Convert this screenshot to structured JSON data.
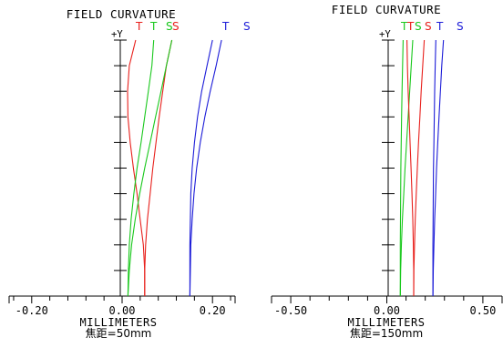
{
  "colors": {
    "red": "#e8201c",
    "green": "#19c81c",
    "blue": "#1c1cd8",
    "axis": "#000000"
  },
  "chart_data": [
    {
      "type": "line",
      "title": "FIELD CURVATURE",
      "y_axis_label": "+Y",
      "xlabel": "MILLIMETERS",
      "subtitle": "焦距=50mm",
      "xlim": [
        -0.25,
        0.25
      ],
      "ylim": [
        0,
        1
      ],
      "x_tick_labels": [
        {
          "value": -0.2,
          "label": "-0.20"
        },
        {
          "value": 0.0,
          "label": "0.00"
        },
        {
          "value": 0.2,
          "label": "0.20"
        }
      ],
      "legend": [
        {
          "label": "T",
          "color": "#e8201c"
        },
        {
          "label": "T",
          "color": "#19c81c"
        },
        {
          "label": "S",
          "color": "#19c81c"
        },
        {
          "label": "S",
          "color": "#e8201c"
        },
        {
          "label": "T",
          "color": "#1c1cd8"
        },
        {
          "label": "S",
          "color": "#1c1cd8"
        }
      ],
      "series": [
        {
          "color": "#e8201c",
          "points": [
            [
              0.05,
              0
            ],
            [
              0.05,
              0.1
            ],
            [
              0.047,
              0.2
            ],
            [
              0.04,
              0.3
            ],
            [
              0.033,
              0.4
            ],
            [
              0.025,
              0.5
            ],
            [
              0.018,
              0.6
            ],
            [
              0.013,
              0.7
            ],
            [
              0.012,
              0.8
            ],
            [
              0.016,
              0.9
            ],
            [
              0.03,
              1
            ]
          ]
        },
        {
          "color": "#e8201c",
          "points": [
            [
              0.05,
              0
            ],
            [
              0.05,
              0.1
            ],
            [
              0.052,
              0.2
            ],
            [
              0.056,
              0.3
            ],
            [
              0.062,
              0.4
            ],
            [
              0.068,
              0.5
            ],
            [
              0.075,
              0.6
            ],
            [
              0.082,
              0.7
            ],
            [
              0.09,
              0.8
            ],
            [
              0.098,
              0.9
            ],
            [
              0.11,
              1
            ]
          ]
        },
        {
          "color": "#19c81c",
          "points": [
            [
              0.013,
              0
            ],
            [
              0.014,
              0.1
            ],
            [
              0.016,
              0.2
            ],
            [
              0.02,
              0.3
            ],
            [
              0.026,
              0.4
            ],
            [
              0.033,
              0.5
            ],
            [
              0.042,
              0.6
            ],
            [
              0.05,
              0.7
            ],
            [
              0.058,
              0.8
            ],
            [
              0.066,
              0.9
            ],
            [
              0.07,
              1
            ]
          ]
        },
        {
          "color": "#19c81c",
          "points": [
            [
              0.013,
              0
            ],
            [
              0.016,
              0.1
            ],
            [
              0.021,
              0.2
            ],
            [
              0.029,
              0.3
            ],
            [
              0.039,
              0.4
            ],
            [
              0.05,
              0.5
            ],
            [
              0.062,
              0.6
            ],
            [
              0.074,
              0.7
            ],
            [
              0.086,
              0.8
            ],
            [
              0.098,
              0.9
            ],
            [
              0.11,
              1
            ]
          ]
        },
        {
          "color": "#1c1cd8",
          "points": [
            [
              0.15,
              0
            ],
            [
              0.15,
              0.1
            ],
            [
              0.15,
              0.2
            ],
            [
              0.151,
              0.3
            ],
            [
              0.152,
              0.4
            ],
            [
              0.155,
              0.5
            ],
            [
              0.16,
              0.6
            ],
            [
              0.167,
              0.7
            ],
            [
              0.176,
              0.8
            ],
            [
              0.188,
              0.9
            ],
            [
              0.2,
              1
            ]
          ]
        },
        {
          "color": "#1c1cd8",
          "points": [
            [
              0.15,
              0
            ],
            [
              0.151,
              0.1
            ],
            [
              0.152,
              0.2
            ],
            [
              0.155,
              0.3
            ],
            [
              0.159,
              0.4
            ],
            [
              0.165,
              0.5
            ],
            [
              0.173,
              0.6
            ],
            [
              0.183,
              0.7
            ],
            [
              0.195,
              0.8
            ],
            [
              0.208,
              0.9
            ],
            [
              0.22,
              1
            ]
          ]
        }
      ]
    },
    {
      "type": "line",
      "title": "FIELD CURVATURE",
      "y_axis_label": "+Y",
      "xlabel": "MILLIMETERS",
      "subtitle": "焦距=150mm",
      "xlim": [
        -0.6,
        0.6
      ],
      "ylim": [
        0,
        1
      ],
      "x_tick_labels": [
        {
          "value": -0.5,
          "label": "-0.50"
        },
        {
          "value": 0.0,
          "label": "0.00"
        },
        {
          "value": 0.5,
          "label": "0.50"
        }
      ],
      "legend": [
        {
          "label": "T",
          "color": "#19c81c"
        },
        {
          "label": "T",
          "color": "#e8201c"
        },
        {
          "label": "S",
          "color": "#19c81c"
        },
        {
          "label": "S",
          "color": "#e8201c"
        },
        {
          "label": "T",
          "color": "#1c1cd8"
        },
        {
          "label": "S",
          "color": "#1c1cd8"
        }
      ],
      "series": [
        {
          "color": "#19c81c",
          "points": [
            [
              0.07,
              0
            ],
            [
              0.07,
              0.1
            ],
            [
              0.07,
              0.2
            ],
            [
              0.071,
              0.3
            ],
            [
              0.072,
              0.4
            ],
            [
              0.073,
              0.5
            ],
            [
              0.075,
              0.6
            ],
            [
              0.077,
              0.7
            ],
            [
              0.079,
              0.8
            ],
            [
              0.082,
              0.9
            ],
            [
              0.085,
              1
            ]
          ]
        },
        {
          "color": "#19c81c",
          "points": [
            [
              0.07,
              0
            ],
            [
              0.072,
              0.1
            ],
            [
              0.076,
              0.2
            ],
            [
              0.081,
              0.3
            ],
            [
              0.088,
              0.4
            ],
            [
              0.095,
              0.5
            ],
            [
              0.103,
              0.6
            ],
            [
              0.111,
              0.7
            ],
            [
              0.119,
              0.8
            ],
            [
              0.127,
              0.9
            ],
            [
              0.135,
              1
            ]
          ]
        },
        {
          "color": "#e8201c",
          "points": [
            [
              0.14,
              0
            ],
            [
              0.14,
              0.1
            ],
            [
              0.138,
              0.2
            ],
            [
              0.135,
              0.3
            ],
            [
              0.131,
              0.4
            ],
            [
              0.126,
              0.5
            ],
            [
              0.121,
              0.6
            ],
            [
              0.116,
              0.7
            ],
            [
              0.111,
              0.8
            ],
            [
              0.107,
              0.9
            ],
            [
              0.105,
              1
            ]
          ]
        },
        {
          "color": "#e8201c",
          "points": [
            [
              0.14,
              0
            ],
            [
              0.141,
              0.1
            ],
            [
              0.144,
              0.2
            ],
            [
              0.148,
              0.3
            ],
            [
              0.153,
              0.4
            ],
            [
              0.159,
              0.5
            ],
            [
              0.165,
              0.6
            ],
            [
              0.172,
              0.7
            ],
            [
              0.179,
              0.8
            ],
            [
              0.187,
              0.9
            ],
            [
              0.195,
              1
            ]
          ]
        },
        {
          "color": "#1c1cd8",
          "points": [
            [
              0.24,
              0
            ],
            [
              0.24,
              0.1
            ],
            [
              0.24,
              0.2
            ],
            [
              0.241,
              0.3
            ],
            [
              0.242,
              0.4
            ],
            [
              0.243,
              0.5
            ],
            [
              0.245,
              0.6
            ],
            [
              0.247,
              0.7
            ],
            [
              0.249,
              0.8
            ],
            [
              0.252,
              0.9
            ],
            [
              0.255,
              1
            ]
          ]
        },
        {
          "color": "#1c1cd8",
          "points": [
            [
              0.24,
              0
            ],
            [
              0.242,
              0.1
            ],
            [
              0.245,
              0.2
            ],
            [
              0.249,
              0.3
            ],
            [
              0.254,
              0.4
            ],
            [
              0.259,
              0.5
            ],
            [
              0.265,
              0.6
            ],
            [
              0.272,
              0.7
            ],
            [
              0.279,
              0.8
            ],
            [
              0.286,
              0.9
            ],
            [
              0.295,
              1
            ]
          ]
        }
      ]
    }
  ]
}
